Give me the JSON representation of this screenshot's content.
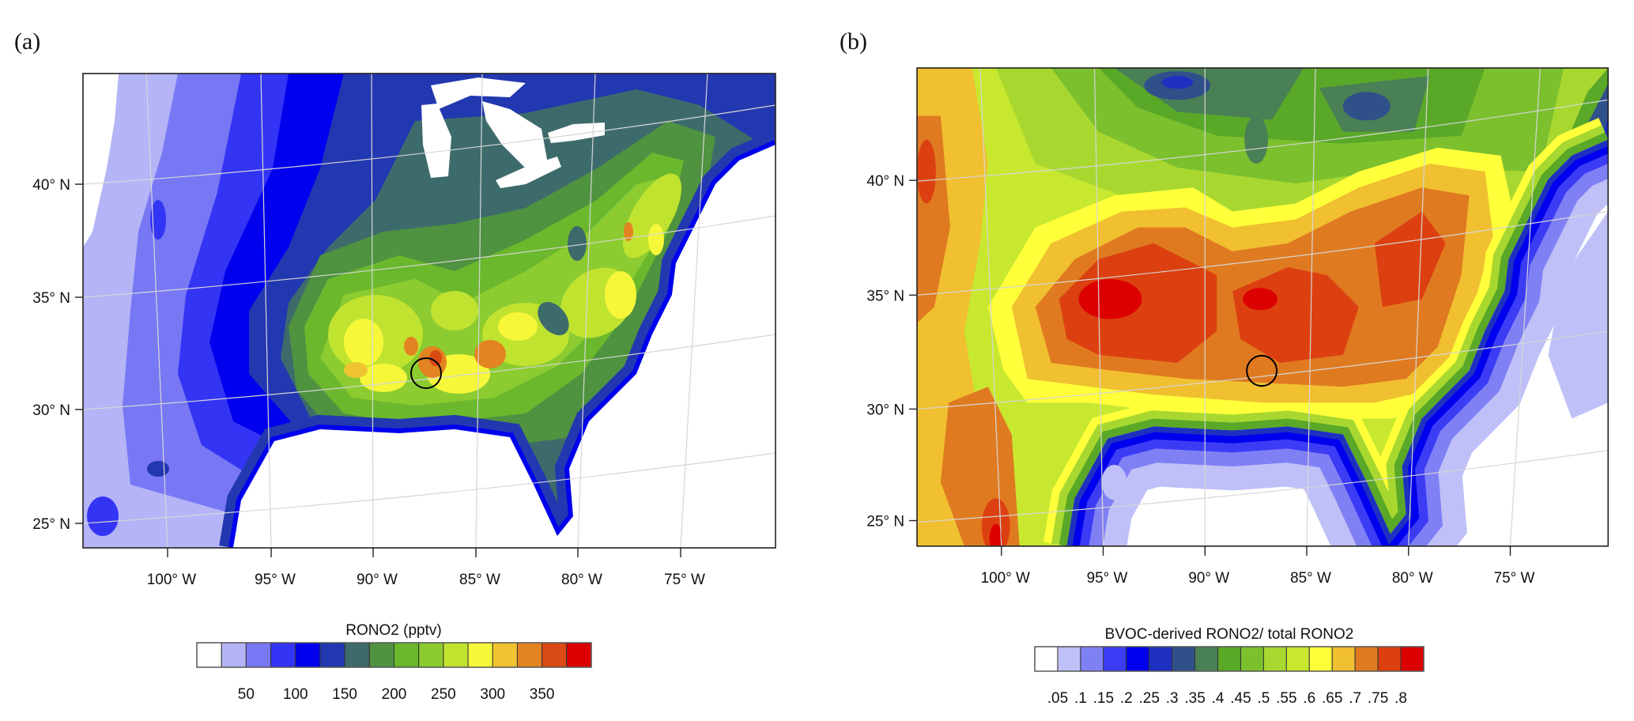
{
  "figure": {
    "panels": [
      {
        "label": "(a)",
        "lat_ticks": [
          "40° N",
          "35° N",
          "30° N",
          "25° N"
        ],
        "lon_ticks": [
          "100° W",
          "95° W",
          "90° W",
          "85° W",
          "80° W",
          "75° W"
        ],
        "marker": "circle",
        "colorbar": {
          "title": "RONO2  (pptv)",
          "labels": [
            "50",
            "100",
            "150",
            "200",
            "250",
            "300",
            "350"
          ],
          "levels": [
            25,
            50,
            75,
            100,
            125,
            150,
            175,
            200,
            225,
            250,
            275,
            300,
            325,
            350,
            375
          ],
          "colors": [
            "#ffffff",
            "#b4b4f7",
            "#7878f5",
            "#3434f5",
            "#0000ee",
            "#2238b0",
            "#3d6b6b",
            "#4f9240",
            "#6bb82c",
            "#8ccc30",
            "#c0e330",
            "#f7f73a",
            "#f0c430",
            "#e38321",
            "#d94a14",
            "#dd0000"
          ]
        }
      },
      {
        "label": "(b)",
        "lat_ticks": [
          "40° N",
          "35° N",
          "30° N",
          "25° N"
        ],
        "lon_ticks": [
          "100° W",
          "95° W",
          "90° W",
          "85° W",
          "80° W",
          "75° W"
        ],
        "marker": "circle",
        "colorbar": {
          "title": "BVOC-derived RONO2/ total RONO2",
          "labels": [
            ".05",
            ".1",
            ".15",
            ".2",
            ".25",
            ".3",
            ".35",
            ".4",
            ".45",
            ".5",
            ".55",
            ".6",
            ".65",
            ".7",
            ".75",
            ".8"
          ],
          "colors": [
            "#ffffff",
            "#c0c0f8",
            "#8080f5",
            "#3c3cf5",
            "#0000ee",
            "#1e30c0",
            "#30508a",
            "#4a8055",
            "#5aa828",
            "#7cc02e",
            "#a8d830",
            "#c8e830",
            "#ffff3a",
            "#f0c030",
            "#e07a20",
            "#dc4010",
            "#dd0000"
          ]
        }
      }
    ]
  }
}
